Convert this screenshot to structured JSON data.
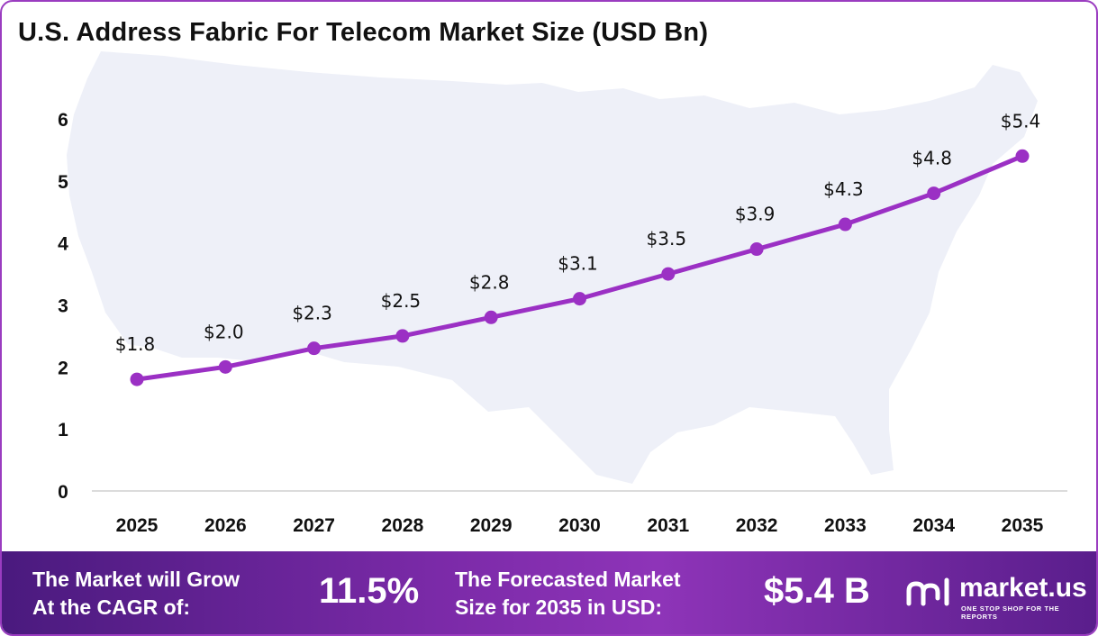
{
  "chart_data": {
    "type": "line",
    "title": "U.S. Address Fabric For Telecom Market Size (USD Bn)",
    "categories": [
      "2025",
      "2026",
      "2027",
      "2028",
      "2029",
      "2030",
      "2031",
      "2032",
      "2033",
      "2034",
      "2035"
    ],
    "values": [
      1.8,
      2.0,
      2.3,
      2.5,
      2.8,
      3.1,
      3.5,
      3.9,
      4.3,
      4.8,
      5.4
    ],
    "data_labels": [
      "$1.8",
      "$2.0",
      "$2.3",
      "$2.5",
      "$2.8",
      "$3.1",
      "$3.5",
      "$3.9",
      "$4.3",
      "$4.8",
      "$5.4"
    ],
    "y_ticks": [
      "0",
      "1",
      "2",
      "3",
      "4",
      "5",
      "6"
    ],
    "ylim": [
      0,
      6
    ],
    "line_color": "#9b30c4",
    "grid": false,
    "legend": "none"
  },
  "footer": {
    "cagr_label_line1": "The Market will Grow",
    "cagr_label_line2": "At the CAGR of:",
    "cagr_value": "11.5%",
    "forecast_label_line1": "The Forecasted Market",
    "forecast_label_line2": "Size for 2035 in USD:",
    "forecast_value": "$5.4 B"
  },
  "logo": {
    "name": "market.us",
    "tagline": "ONE STOP SHOP FOR THE REPORTS"
  }
}
